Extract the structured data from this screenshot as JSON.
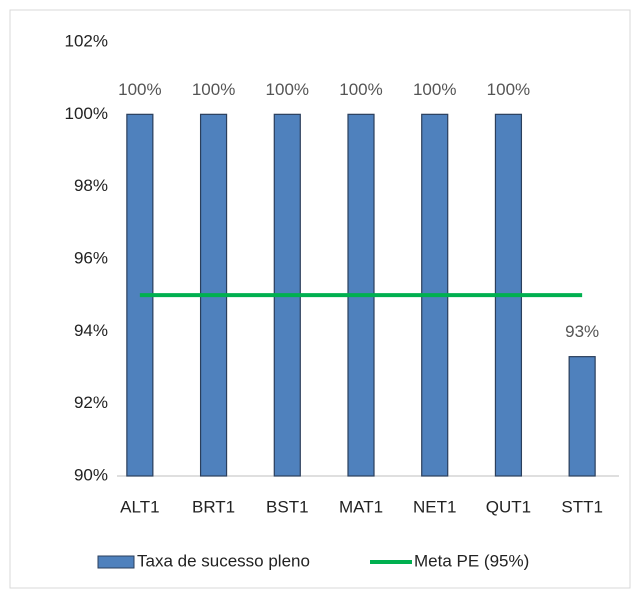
{
  "chart_data": {
    "type": "bar",
    "categories": [
      "ALT1",
      "BRT1",
      "BST1",
      "MAT1",
      "NET1",
      "QUT1",
      "STT1"
    ],
    "series": [
      {
        "name": "Taxa de sucesso pleno",
        "type": "bar",
        "color": "#4f81bd",
        "values": [
          100,
          100,
          100,
          100,
          100,
          100,
          93.3
        ],
        "value_labels": [
          "100%",
          "100%",
          "100%",
          "100%",
          "100%",
          "100%",
          "93%"
        ]
      },
      {
        "name": "Meta PE (95%)",
        "type": "line",
        "color": "#00b050",
        "values": [
          95,
          95,
          95,
          95,
          95,
          95,
          95
        ]
      }
    ],
    "ylim": [
      90,
      102
    ],
    "yticks": [
      {
        "value": 90,
        "label": "90%"
      },
      {
        "value": 92,
        "label": "92%"
      },
      {
        "value": 94,
        "label": "94%"
      },
      {
        "value": 96,
        "label": "96%"
      },
      {
        "value": 98,
        "label": "98%"
      },
      {
        "value": 100,
        "label": "100%"
      },
      {
        "value": 102,
        "label": "102%"
      }
    ],
    "grid": false,
    "legend": "bottom"
  }
}
